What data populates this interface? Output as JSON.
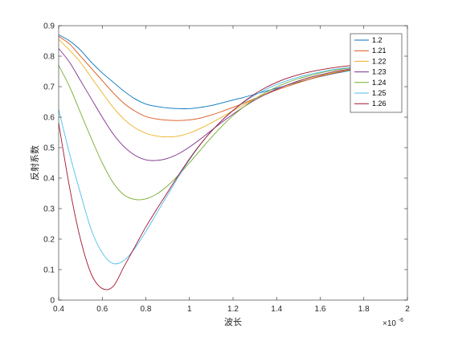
{
  "chart_data": {
    "type": "line",
    "xlabel": "波长",
    "ylabel": "反射系数",
    "x_multiplier": "×10",
    "x_multiplier_exp": "-6",
    "xlim": [
      0.4,
      2.0
    ],
    "ylim": [
      0,
      0.9
    ],
    "xticks": [
      "0.4",
      "0.6",
      "0.8",
      "1",
      "1.2",
      "1.4",
      "1.6",
      "1.8",
      "2"
    ],
    "yticks": [
      "0",
      "0.1",
      "0.2",
      "0.3",
      "0.4",
      "0.5",
      "0.6",
      "0.7",
      "0.8",
      "0.9"
    ],
    "grid": false,
    "legend_position": "top-right",
    "x": [
      0.4,
      0.45,
      0.5,
      0.55,
      0.6,
      0.65,
      0.7,
      0.75,
      0.8,
      0.85,
      0.9,
      0.95,
      1.0,
      1.05,
      1.1,
      1.15,
      1.2,
      1.25,
      1.3,
      1.35,
      1.4,
      1.45,
      1.5,
      1.55,
      1.6,
      1.65,
      1.7,
      1.75
    ],
    "series": [
      {
        "name": "1.2",
        "color": "#0072BD",
        "values": [
          0.87,
          0.85,
          0.82,
          0.78,
          0.745,
          0.715,
          0.685,
          0.66,
          0.643,
          0.635,
          0.63,
          0.628,
          0.628,
          0.632,
          0.638,
          0.647,
          0.656,
          0.665,
          0.675,
          0.685,
          0.695,
          0.705,
          0.715,
          0.724,
          0.733,
          0.741,
          0.748,
          0.755
        ]
      },
      {
        "name": "1.21",
        "color": "#D95319",
        "values": [
          0.865,
          0.84,
          0.8,
          0.76,
          0.72,
          0.68,
          0.645,
          0.62,
          0.602,
          0.594,
          0.59,
          0.589,
          0.591,
          0.597,
          0.607,
          0.619,
          0.632,
          0.646,
          0.661,
          0.675,
          0.689,
          0.701,
          0.713,
          0.724,
          0.734,
          0.742,
          0.75,
          0.757
        ]
      },
      {
        "name": "1.22",
        "color": "#EDB120",
        "values": [
          0.855,
          0.82,
          0.78,
          0.73,
          0.68,
          0.632,
          0.593,
          0.565,
          0.547,
          0.538,
          0.535,
          0.538,
          0.548,
          0.563,
          0.581,
          0.601,
          0.621,
          0.641,
          0.66,
          0.677,
          0.692,
          0.705,
          0.717,
          0.728,
          0.737,
          0.745,
          0.752,
          0.758
        ]
      },
      {
        "name": "1.23",
        "color": "#7E2F8E",
        "values": [
          0.825,
          0.78,
          0.72,
          0.66,
          0.6,
          0.545,
          0.503,
          0.475,
          0.46,
          0.458,
          0.465,
          0.48,
          0.502,
          0.528,
          0.556,
          0.584,
          0.61,
          0.634,
          0.656,
          0.675,
          0.692,
          0.706,
          0.719,
          0.73,
          0.739,
          0.747,
          0.754,
          0.76
        ]
      },
      {
        "name": "1.24",
        "color": "#77AC30",
        "values": [
          0.77,
          0.7,
          0.615,
          0.53,
          0.45,
          0.385,
          0.345,
          0.33,
          0.332,
          0.348,
          0.375,
          0.41,
          0.45,
          0.492,
          0.533,
          0.571,
          0.605,
          0.634,
          0.66,
          0.681,
          0.699,
          0.714,
          0.726,
          0.736,
          0.745,
          0.752,
          0.758,
          0.763
        ]
      },
      {
        "name": "1.25",
        "color": "#4DBEEE",
        "values": [
          0.625,
          0.48,
          0.35,
          0.23,
          0.155,
          0.12,
          0.13,
          0.17,
          0.225,
          0.285,
          0.345,
          0.405,
          0.46,
          0.51,
          0.553,
          0.59,
          0.622,
          0.649,
          0.672,
          0.691,
          0.707,
          0.72,
          0.731,
          0.74,
          0.748,
          0.755,
          0.76,
          0.764
        ]
      },
      {
        "name": "1.26",
        "color": "#A2142F",
        "values": [
          0.58,
          0.37,
          0.2,
          0.085,
          0.038,
          0.045,
          0.11,
          0.175,
          0.24,
          0.298,
          0.354,
          0.41,
          0.463,
          0.511,
          0.553,
          0.59,
          0.622,
          0.651,
          0.676,
          0.697,
          0.714,
          0.728,
          0.739,
          0.748,
          0.755,
          0.761,
          0.766,
          0.77
        ]
      }
    ]
  }
}
